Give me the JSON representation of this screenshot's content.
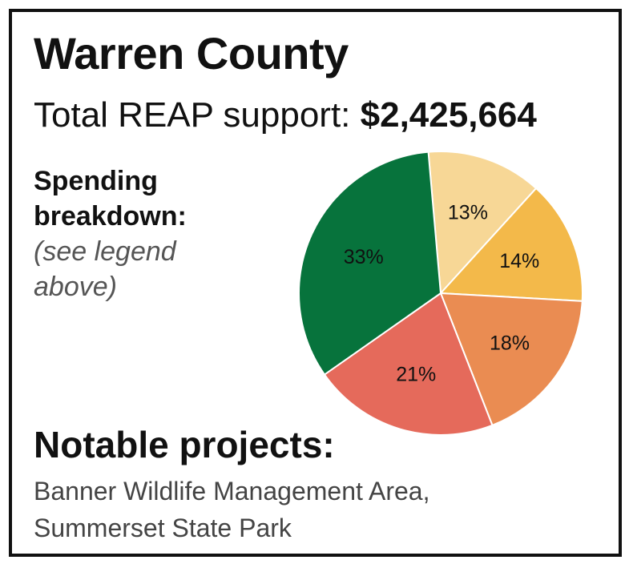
{
  "title": "Warren County",
  "total": {
    "label": "Total REAP support:",
    "amount": "$2,425,664"
  },
  "breakdown": {
    "heading_line1": "Spending",
    "heading_line2": "breakdown:",
    "note": "(see legend above)"
  },
  "projects": {
    "heading": "Notable projects:",
    "items": [
      "Banner Wildlife Management Area,",
      "Summerset State Park"
    ]
  },
  "chart_data": {
    "type": "pie",
    "title": "",
    "slices": [
      {
        "value": 13,
        "label": "13%",
        "color": "#f7d796"
      },
      {
        "value": 14,
        "label": "14%",
        "color": "#f3b94a"
      },
      {
        "value": 18,
        "label": "18%",
        "color": "#ea8c52"
      },
      {
        "value": 21,
        "label": "21%",
        "color": "#e56a5b"
      },
      {
        "value": 33,
        "label": "33%",
        "color": "#07733c"
      }
    ],
    "start_angle_deg": -5
  }
}
